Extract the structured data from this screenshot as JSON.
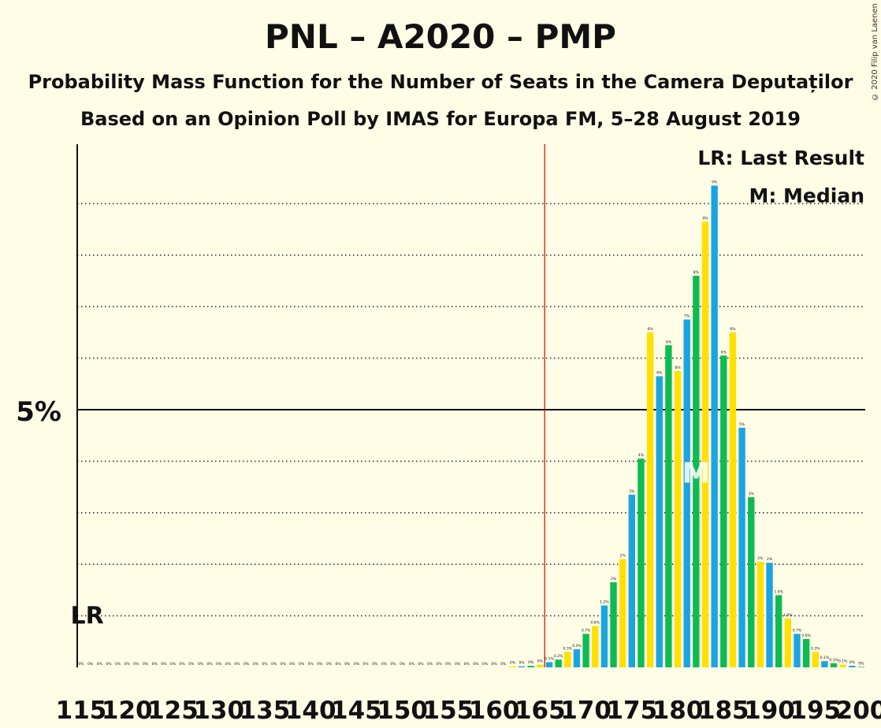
{
  "title": "PNL – A2020 – PMP",
  "subtitle_1": "Probability Mass Function for the Number of Seats in the Camera Deputaților",
  "subtitle_2": "Based on an Opinion Poll by IMAS for Europa FM, 5–28 August 2019",
  "copyright": "© 2020 Filip van Laenen",
  "colors": {
    "background": "#fffde6",
    "blue": "#1aa5e0",
    "green": "#0dbb52",
    "yellow": "#ffe000",
    "majority_line": "#cc0000"
  },
  "chart_data": {
    "type": "bar",
    "xlim": [
      115,
      200
    ],
    "ylim": [
      0,
      10
    ],
    "y_major_tick": {
      "value": 5,
      "label": "5%"
    },
    "gridlines": [
      1,
      2,
      3,
      4,
      6,
      7,
      8,
      9
    ],
    "x_tick_labels": [
      "115",
      "120",
      "125",
      "130",
      "135",
      "140",
      "145",
      "150",
      "155",
      "160",
      "165",
      "170",
      "175",
      "180",
      "185",
      "190",
      "195",
      "200"
    ],
    "majority_line_x": 165.5,
    "last_result": {
      "seats": 116,
      "label": "LR"
    },
    "median": {
      "seats": 182,
      "label": "M"
    },
    "legend": [
      "LR: Last Result",
      "M: Median"
    ],
    "color_cycle": [
      "blue",
      "green",
      "yellow"
    ],
    "seats": [
      115,
      116,
      117,
      118,
      119,
      120,
      121,
      122,
      123,
      124,
      125,
      126,
      127,
      128,
      129,
      130,
      131,
      132,
      133,
      134,
      135,
      136,
      137,
      138,
      139,
      140,
      141,
      142,
      143,
      144,
      145,
      146,
      147,
      148,
      149,
      150,
      151,
      152,
      153,
      154,
      155,
      156,
      157,
      158,
      159,
      160,
      161,
      162,
      163,
      164,
      165,
      166,
      167,
      168,
      169,
      170,
      171,
      172,
      173,
      174,
      175,
      176,
      177,
      178,
      179,
      180,
      181,
      182,
      183,
      184,
      185,
      186,
      187,
      188,
      189,
      190,
      191,
      192,
      193,
      194,
      195,
      196,
      197,
      198,
      199,
      200
    ],
    "values": [
      0,
      0,
      0,
      0,
      0,
      0,
      0,
      0,
      0,
      0,
      0,
      0,
      0,
      0,
      0,
      0,
      0,
      0,
      0,
      0,
      0,
      0,
      0,
      0,
      0,
      0,
      0,
      0,
      0,
      0,
      0,
      0,
      0,
      0,
      0,
      0,
      0,
      0,
      0,
      0,
      0,
      0,
      0,
      0,
      0,
      0,
      0,
      0.02,
      0.02,
      0.03,
      0.05,
      0.1,
      0.15,
      0.3,
      0.35,
      0.65,
      0.8,
      1.2,
      1.65,
      2.1,
      3.35,
      4.05,
      6.5,
      5.65,
      6.25,
      5.75,
      6.75,
      7.6,
      8.65,
      9.35,
      6.05,
      6.5,
      4.65,
      3.3,
      2.05,
      2.03,
      1.4,
      0.95,
      0.65,
      0.55,
      0.3,
      0.12,
      0.08,
      0.05,
      0.03,
      0.01
    ],
    "value_labels": [
      "0%",
      "0%",
      "0%",
      "0%",
      "0%",
      "0%",
      "0%",
      "0%",
      "0%",
      "0%",
      "0%",
      "0%",
      "0%",
      "0%",
      "0%",
      "0%",
      "0%",
      "0%",
      "0%",
      "0%",
      "0%",
      "0%",
      "0%",
      "0%",
      "0%",
      "0%",
      "0%",
      "0%",
      "0%",
      "0%",
      "0%",
      "0%",
      "0%",
      "0%",
      "0%",
      "0%",
      "0%",
      "0%",
      "0%",
      "0%",
      "0%",
      "0%",
      "0%",
      "0%",
      "0%",
      "0%",
      "0%",
      "0%",
      "0%",
      "0%",
      "0%",
      "0.1%",
      "0.2%",
      "0.3%",
      "0.3%",
      "0.7%",
      "0.8%",
      "1.2%",
      "2%",
      "2%",
      "3%",
      "4%",
      "6%",
      "6%",
      "6%",
      "6%",
      "7%",
      "8%",
      "9%",
      "9%",
      "6%",
      "6%",
      "5%",
      "3%",
      "2%",
      "2%",
      "1.4%",
      "1.0%",
      "0.7%",
      "0.6%",
      "0.3%",
      "0.1%",
      "0.1%",
      "0.1%",
      "0%",
      "0%"
    ]
  }
}
